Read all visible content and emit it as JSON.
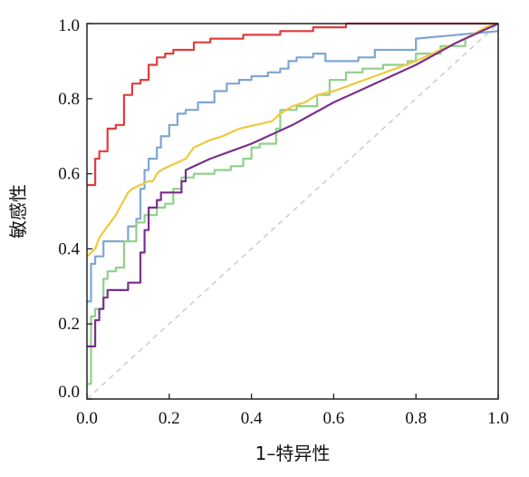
{
  "chart_data": {
    "type": "line",
    "title": "",
    "xlabel": "1–特异性",
    "ylabel": "敏感性",
    "xlim": [
      0,
      1
    ],
    "ylim": [
      0,
      1
    ],
    "x_ticks": [
      "0.0",
      "0.2",
      "0.4",
      "0.6",
      "0.8",
      "1.0"
    ],
    "y_ticks": [
      "0.0",
      "0.2",
      "0.4",
      "0.6",
      "0.8",
      "1.0"
    ],
    "grid": false,
    "legend": "none",
    "reference_line": {
      "color": "#cccccc",
      "dashed": true,
      "points": [
        [
          0,
          0
        ],
        [
          1,
          1
        ]
      ]
    },
    "series": [
      {
        "color": "#e03c3c",
        "points": [
          [
            0,
            0.57
          ],
          [
            0.02,
            0.57
          ],
          [
            0.02,
            0.64
          ],
          [
            0.03,
            0.64
          ],
          [
            0.03,
            0.66
          ],
          [
            0.05,
            0.66
          ],
          [
            0.05,
            0.72
          ],
          [
            0.07,
            0.72
          ],
          [
            0.07,
            0.73
          ],
          [
            0.09,
            0.73
          ],
          [
            0.09,
            0.81
          ],
          [
            0.11,
            0.81
          ],
          [
            0.11,
            0.84
          ],
          [
            0.13,
            0.84
          ],
          [
            0.13,
            0.85
          ],
          [
            0.15,
            0.85
          ],
          [
            0.15,
            0.89
          ],
          [
            0.17,
            0.89
          ],
          [
            0.17,
            0.91
          ],
          [
            0.19,
            0.91
          ],
          [
            0.19,
            0.92
          ],
          [
            0.21,
            0.92
          ],
          [
            0.21,
            0.93
          ],
          [
            0.26,
            0.93
          ],
          [
            0.26,
            0.95
          ],
          [
            0.3,
            0.95
          ],
          [
            0.3,
            0.96
          ],
          [
            0.38,
            0.96
          ],
          [
            0.38,
            0.97
          ],
          [
            0.47,
            0.97
          ],
          [
            0.47,
            0.98
          ],
          [
            0.55,
            0.98
          ],
          [
            0.55,
            0.99
          ],
          [
            0.63,
            0.99
          ],
          [
            0.63,
            1.0
          ],
          [
            1.0,
            1.0
          ]
        ]
      },
      {
        "color": "#7ea6d4",
        "points": [
          [
            0,
            0.26
          ],
          [
            0.01,
            0.26
          ],
          [
            0.01,
            0.36
          ],
          [
            0.02,
            0.36
          ],
          [
            0.02,
            0.38
          ],
          [
            0.04,
            0.38
          ],
          [
            0.04,
            0.42
          ],
          [
            0.1,
            0.42
          ],
          [
            0.1,
            0.46
          ],
          [
            0.12,
            0.46
          ],
          [
            0.12,
            0.48
          ],
          [
            0.13,
            0.48
          ],
          [
            0.13,
            0.56
          ],
          [
            0.14,
            0.56
          ],
          [
            0.14,
            0.61
          ],
          [
            0.15,
            0.61
          ],
          [
            0.15,
            0.64
          ],
          [
            0.17,
            0.64
          ],
          [
            0.17,
            0.67
          ],
          [
            0.18,
            0.67
          ],
          [
            0.18,
            0.7
          ],
          [
            0.2,
            0.7
          ],
          [
            0.2,
            0.73
          ],
          [
            0.22,
            0.73
          ],
          [
            0.22,
            0.76
          ],
          [
            0.24,
            0.76
          ],
          [
            0.24,
            0.77
          ],
          [
            0.27,
            0.77
          ],
          [
            0.27,
            0.79
          ],
          [
            0.31,
            0.79
          ],
          [
            0.31,
            0.82
          ],
          [
            0.34,
            0.82
          ],
          [
            0.34,
            0.84
          ],
          [
            0.37,
            0.84
          ],
          [
            0.37,
            0.85
          ],
          [
            0.4,
            0.85
          ],
          [
            0.4,
            0.86
          ],
          [
            0.44,
            0.86
          ],
          [
            0.44,
            0.87
          ],
          [
            0.47,
            0.87
          ],
          [
            0.47,
            0.88
          ],
          [
            0.49,
            0.88
          ],
          [
            0.49,
            0.9
          ],
          [
            0.51,
            0.9
          ],
          [
            0.51,
            0.91
          ],
          [
            0.55,
            0.91
          ],
          [
            0.55,
            0.92
          ],
          [
            0.58,
            0.92
          ],
          [
            0.58,
            0.9
          ],
          [
            0.66,
            0.9
          ],
          [
            0.66,
            0.91
          ],
          [
            0.7,
            0.91
          ],
          [
            0.7,
            0.93
          ],
          [
            0.8,
            0.93
          ],
          [
            0.8,
            0.96
          ],
          [
            1.0,
            0.98
          ]
        ]
      },
      {
        "color": "#8fd18a",
        "points": [
          [
            0,
            0.04
          ],
          [
            0.01,
            0.04
          ],
          [
            0.01,
            0.22
          ],
          [
            0.02,
            0.22
          ],
          [
            0.02,
            0.24
          ],
          [
            0.04,
            0.24
          ],
          [
            0.04,
            0.32
          ],
          [
            0.05,
            0.32
          ],
          [
            0.05,
            0.34
          ],
          [
            0.07,
            0.34
          ],
          [
            0.07,
            0.35
          ],
          [
            0.09,
            0.35
          ],
          [
            0.09,
            0.42
          ],
          [
            0.12,
            0.42
          ],
          [
            0.12,
            0.47
          ],
          [
            0.14,
            0.47
          ],
          [
            0.14,
            0.49
          ],
          [
            0.17,
            0.49
          ],
          [
            0.17,
            0.51
          ],
          [
            0.19,
            0.51
          ],
          [
            0.19,
            0.52
          ],
          [
            0.21,
            0.52
          ],
          [
            0.21,
            0.56
          ],
          [
            0.23,
            0.56
          ],
          [
            0.23,
            0.59
          ],
          [
            0.26,
            0.59
          ],
          [
            0.26,
            0.6
          ],
          [
            0.31,
            0.6
          ],
          [
            0.31,
            0.61
          ],
          [
            0.35,
            0.61
          ],
          [
            0.35,
            0.62
          ],
          [
            0.38,
            0.62
          ],
          [
            0.38,
            0.64
          ],
          [
            0.4,
            0.64
          ],
          [
            0.4,
            0.67
          ],
          [
            0.42,
            0.67
          ],
          [
            0.42,
            0.68
          ],
          [
            0.46,
            0.68
          ],
          [
            0.46,
            0.72
          ],
          [
            0.47,
            0.72
          ],
          [
            0.47,
            0.77
          ],
          [
            0.51,
            0.77
          ],
          [
            0.51,
            0.78
          ],
          [
            0.56,
            0.78
          ],
          [
            0.56,
            0.81
          ],
          [
            0.59,
            0.81
          ],
          [
            0.59,
            0.85
          ],
          [
            0.63,
            0.85
          ],
          [
            0.63,
            0.87
          ],
          [
            0.67,
            0.87
          ],
          [
            0.67,
            0.88
          ],
          [
            0.72,
            0.88
          ],
          [
            0.72,
            0.89
          ],
          [
            0.78,
            0.89
          ],
          [
            0.78,
            0.9
          ],
          [
            0.8,
            0.9
          ],
          [
            0.8,
            0.92
          ],
          [
            0.86,
            0.92
          ],
          [
            0.86,
            0.94
          ],
          [
            0.92,
            0.94
          ],
          [
            0.92,
            0.96
          ],
          [
            1.0,
            1.0
          ]
        ]
      },
      {
        "color": "#efc93a",
        "points": [
          [
            0,
            0.38
          ],
          [
            0.02,
            0.4
          ],
          [
            0.03,
            0.43
          ],
          [
            0.05,
            0.46
          ],
          [
            0.07,
            0.49
          ],
          [
            0.08,
            0.51
          ],
          [
            0.09,
            0.53
          ],
          [
            0.1,
            0.55
          ],
          [
            0.11,
            0.56
          ],
          [
            0.13,
            0.57
          ],
          [
            0.15,
            0.58
          ],
          [
            0.16,
            0.58
          ],
          [
            0.17,
            0.6
          ],
          [
            0.18,
            0.61
          ],
          [
            0.2,
            0.62
          ],
          [
            0.22,
            0.63
          ],
          [
            0.24,
            0.64
          ],
          [
            0.26,
            0.67
          ],
          [
            0.28,
            0.68
          ],
          [
            0.3,
            0.69
          ],
          [
            0.33,
            0.7
          ],
          [
            0.37,
            0.72
          ],
          [
            0.41,
            0.73
          ],
          [
            0.45,
            0.74
          ],
          [
            0.47,
            0.76
          ],
          [
            0.5,
            0.78
          ],
          [
            0.53,
            0.79
          ],
          [
            0.56,
            0.81
          ],
          [
            0.6,
            0.82
          ],
          [
            0.65,
            0.84
          ],
          [
            0.7,
            0.86
          ],
          [
            0.75,
            0.88
          ],
          [
            0.8,
            0.9
          ],
          [
            0.86,
            0.93
          ],
          [
            0.92,
            0.96
          ],
          [
            0.97,
            0.99
          ],
          [
            1.0,
            1.0
          ]
        ]
      },
      {
        "color": "#7a2f8c",
        "points": [
          [
            0,
            0.14
          ],
          [
            0.02,
            0.14
          ],
          [
            0.02,
            0.21
          ],
          [
            0.03,
            0.21
          ],
          [
            0.03,
            0.24
          ],
          [
            0.04,
            0.24
          ],
          [
            0.04,
            0.27
          ],
          [
            0.05,
            0.27
          ],
          [
            0.05,
            0.29
          ],
          [
            0.1,
            0.29
          ],
          [
            0.1,
            0.31
          ],
          [
            0.13,
            0.31
          ],
          [
            0.13,
            0.39
          ],
          [
            0.14,
            0.39
          ],
          [
            0.14,
            0.45
          ],
          [
            0.15,
            0.45
          ],
          [
            0.15,
            0.51
          ],
          [
            0.17,
            0.51
          ],
          [
            0.17,
            0.53
          ],
          [
            0.18,
            0.53
          ],
          [
            0.18,
            0.55
          ],
          [
            0.23,
            0.55
          ],
          [
            0.23,
            0.58
          ],
          [
            0.24,
            0.58
          ],
          [
            0.24,
            0.61
          ],
          [
            0.3,
            0.64
          ],
          [
            0.4,
            0.68
          ],
          [
            0.5,
            0.73
          ],
          [
            0.6,
            0.79
          ],
          [
            0.7,
            0.84
          ],
          [
            0.8,
            0.89
          ],
          [
            0.9,
            0.95
          ],
          [
            1.0,
            1.0
          ]
        ]
      }
    ]
  }
}
